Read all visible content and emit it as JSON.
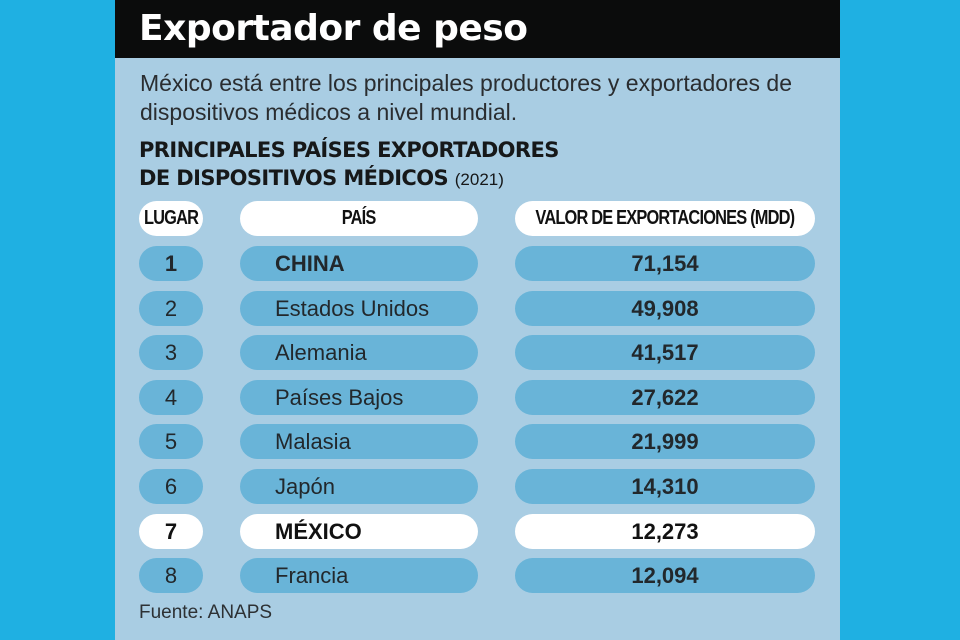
{
  "title": "Exportador de peso",
  "subtitle": "México está entre los principales productores y exportadores de dispositivos médicos a nivel mundial.",
  "heading": {
    "line1": "PRINCIPALES PAÍSES EXPORTADORES",
    "line2": "DE DISPOSITIVOS MÉDICOS",
    "year": "(2021)"
  },
  "columns": {
    "rank": "LUGAR",
    "country": "PAÍS",
    "value": "VALOR DE EXPORTACIONES (MDD)"
  },
  "source": "Fuente: ANAPS",
  "colors": {
    "background": "#1fb0e2",
    "panel": "#a9cde3",
    "pill": "#69b4d8",
    "highlight": "#ffffff",
    "title_bar": "#0b0c0c"
  },
  "chart_data": {
    "type": "table",
    "columns": [
      "LUGAR",
      "PAÍS",
      "VALOR DE EXPORTACIONES (MDD)"
    ],
    "rows": [
      {
        "rank": "1",
        "country": "CHINA",
        "value": "71,154",
        "highlight": false,
        "bold": true
      },
      {
        "rank": "2",
        "country": "Estados Unidos",
        "value": "49,908",
        "highlight": false,
        "bold": false
      },
      {
        "rank": "3",
        "country": "Alemania",
        "value": "41,517",
        "highlight": false,
        "bold": false
      },
      {
        "rank": "4",
        "country": "Países Bajos",
        "value": "27,622",
        "highlight": false,
        "bold": false
      },
      {
        "rank": "5",
        "country": "Malasia",
        "value": "21,999",
        "highlight": false,
        "bold": false
      },
      {
        "rank": "6",
        "country": "Japón",
        "value": "14,310",
        "highlight": false,
        "bold": false
      },
      {
        "rank": "7",
        "country": "MÉXICO",
        "value": "12,273",
        "highlight": true,
        "bold": true
      },
      {
        "rank": "8",
        "country": "Francia",
        "value": "12,094",
        "highlight": false,
        "bold": false
      }
    ]
  }
}
